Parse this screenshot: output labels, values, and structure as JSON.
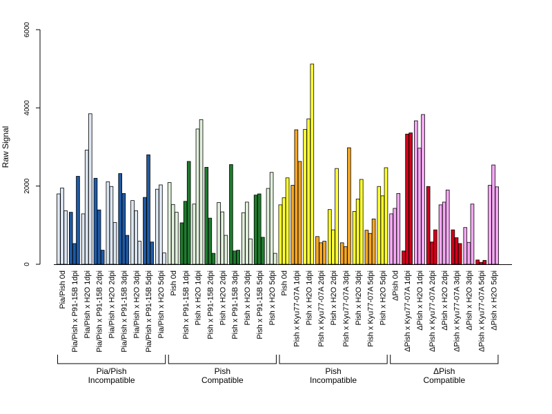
{
  "chart_data": {
    "type": "bar",
    "ylabel": "Raw Signal",
    "ylim": [
      0,
      6000
    ],
    "yticks": [
      0,
      2000,
      4000,
      6000
    ],
    "grid": false,
    "legend": "none",
    "colors": {
      "pale_blue": "#dce6f2",
      "dark_blue": "#1f5aa3",
      "pale_green": "#e1f0dc",
      "dark_green": "#1f7a2e",
      "yellow": "#ffff33",
      "orange": "#f5a623",
      "pink": "#f4a8f2",
      "red": "#d0021b"
    },
    "categories": [
      {
        "label": "Pia/Pish 0d",
        "color": "pale_blue",
        "values": [
          1800,
          1950,
          1370
        ]
      },
      {
        "label": "Pia/Pish x P91-15B 1dpi",
        "color": "dark_blue",
        "values": [
          1330,
          530,
          2250
        ]
      },
      {
        "label": "Pia/Pish x H2O 1dpi",
        "color": "pale_blue",
        "values": [
          1290,
          2920,
          3850
        ]
      },
      {
        "label": "Pia/Pish x P91-15B 2dpi",
        "color": "dark_blue",
        "values": [
          2200,
          1390,
          360
        ]
      },
      {
        "label": "Pia/Pish x H2O 2dpi",
        "color": "pale_blue",
        "values": [
          2110,
          1990,
          1070
        ]
      },
      {
        "label": "Pia/Pish x P91-15B 3dpi",
        "color": "dark_blue",
        "values": [
          2320,
          1810,
          740
        ]
      },
      {
        "label": "Pia/Pish x H2O 3dpi",
        "color": "pale_blue",
        "values": [
          1630,
          1370,
          590
        ]
      },
      {
        "label": "Pia/Pish x P91-15B 5dpi",
        "color": "dark_blue",
        "values": [
          1710,
          2800,
          570
        ]
      },
      {
        "label": "Pia/Pish x H2O 5dpi",
        "color": "pale_blue",
        "values": [
          1920,
          2030,
          290
        ]
      },
      {
        "label": "Pish 0d",
        "color": "pale_green",
        "values": [
          2090,
          1530,
          1330
        ]
      },
      {
        "label": "Pish x P91-15B 1dpi",
        "color": "dark_green",
        "values": [
          1060,
          1610,
          2630
        ]
      },
      {
        "label": "Pish x H2O 1dpi",
        "color": "pale_green",
        "values": [
          1540,
          3460,
          3700
        ]
      },
      {
        "label": "Pish x P91-15B 2dpi",
        "color": "dark_green",
        "values": [
          2480,
          1180,
          280
        ]
      },
      {
        "label": "Pish x H2O 2dpi",
        "color": "pale_green",
        "values": [
          1580,
          1340,
          740
        ]
      },
      {
        "label": "Pish x P91-15B 3dpi",
        "color": "dark_green",
        "values": [
          2550,
          340,
          360
        ]
      },
      {
        "label": "Pish x H2O 3dpi",
        "color": "pale_green",
        "values": [
          1320,
          1590,
          650
        ]
      },
      {
        "label": "Pish x P91-15B 5dpi",
        "color": "dark_green",
        "values": [
          1770,
          1800,
          690
        ]
      },
      {
        "label": "Pish x H2O 5dpi",
        "color": "pale_green",
        "values": [
          1940,
          2350,
          280
        ]
      },
      {
        "label": "Pish 0d",
        "color": "yellow",
        "values": [
          1520,
          1700,
          2210
        ]
      },
      {
        "label": "Pish x Kyu77-07A 1dpi",
        "color": "orange",
        "values": [
          2020,
          3440,
          2630
        ]
      },
      {
        "label": "Pish x H2O 1dpi",
        "color": "yellow",
        "values": [
          3450,
          3720,
          5120
        ]
      },
      {
        "label": "Pish x Kyu77-07A 2dpi",
        "color": "orange",
        "values": [
          710,
          550,
          590
        ]
      },
      {
        "label": "Pish x H2O 2dpi",
        "color": "yellow",
        "values": [
          1400,
          880,
          2450
        ]
      },
      {
        "label": "Pish x Kyu77-07A 3dpi",
        "color": "orange",
        "values": [
          550,
          450,
          2980
        ]
      },
      {
        "label": "Pish x H2O 3dpi",
        "color": "yellow",
        "values": [
          1350,
          1670,
          2170
        ]
      },
      {
        "label": "Pish x Kyu77-07A 5dpi",
        "color": "orange",
        "values": [
          870,
          790,
          1160
        ]
      },
      {
        "label": "Pish x H2O 5dpi",
        "color": "yellow",
        "values": [
          1990,
          1750,
          2470
        ]
      },
      {
        "label": "ΔPish 0d",
        "color": "pink",
        "values": [
          1290,
          1430,
          1810
        ]
      },
      {
        "label": "ΔPish x Kyu77-07A 1dpi",
        "color": "red",
        "values": [
          340,
          3330,
          3360
        ]
      },
      {
        "label": "ΔPish x H2O 1dpi",
        "color": "pink",
        "values": [
          3670,
          2970,
          3830
        ]
      },
      {
        "label": "ΔPish x Kyu77-07A 2dpi",
        "color": "red",
        "values": [
          1990,
          570,
          880
        ]
      },
      {
        "label": "ΔPish x H2O 2dpi",
        "color": "pink",
        "values": [
          1520,
          1590,
          1900
        ]
      },
      {
        "label": "ΔPish x Kyu77-07A 3dpi",
        "color": "red",
        "values": [
          880,
          680,
          530
        ]
      },
      {
        "label": "ΔPish x H2O 3dpi",
        "color": "pink",
        "values": [
          940,
          560,
          1540
        ]
      },
      {
        "label": "ΔPish x Kyu77-07A 5dpi",
        "color": "red",
        "values": [
          110,
          50,
          100
        ]
      },
      {
        "label": "ΔPish x H2O 5dpi",
        "color": "pink",
        "values": [
          2020,
          2540,
          1980
        ]
      }
    ],
    "groups": [
      {
        "line1": "Pia/Pish",
        "line2": "Incompatible",
        "start": 0,
        "end": 8
      },
      {
        "line1": "Pish",
        "line2": "Compatible",
        "start": 9,
        "end": 17
      },
      {
        "line1": "Pish",
        "line2": "Incompatible",
        "start": 18,
        "end": 26
      },
      {
        "line1": "ΔPish",
        "line2": "Compatible",
        "start": 27,
        "end": 35
      }
    ]
  }
}
